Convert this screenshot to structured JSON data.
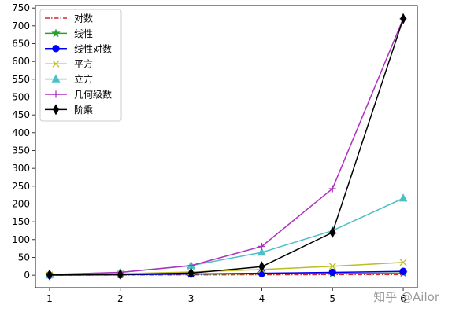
{
  "chart_data": {
    "type": "line",
    "title": "",
    "xlabel": "",
    "ylabel": "",
    "x": [
      1,
      2,
      3,
      4,
      5,
      6
    ],
    "xlim": [
      0.8,
      6.2
    ],
    "ylim": [
      -35,
      757
    ],
    "xticks": [
      1,
      2,
      3,
      4,
      5,
      6
    ],
    "yticks": [
      0,
      50,
      100,
      150,
      200,
      250,
      300,
      350,
      400,
      450,
      500,
      550,
      600,
      650,
      700,
      750
    ],
    "grid": false,
    "legend_position": "upper-left",
    "series": [
      {
        "name": "对数",
        "values": [
          0,
          0.69,
          1.1,
          1.39,
          1.61,
          1.79
        ],
        "color": "#d62728",
        "linestyle": "dashdot",
        "marker": "none"
      },
      {
        "name": "线性",
        "values": [
          1,
          2,
          3,
          4,
          5,
          6
        ],
        "color": "#2ca02c",
        "linestyle": "solid",
        "marker": "star"
      },
      {
        "name": "线性对数",
        "values": [
          0,
          1.39,
          3.3,
          5.55,
          8.05,
          10.75
        ],
        "color": "#0000ff",
        "linestyle": "solid",
        "marker": "circle"
      },
      {
        "name": "平方",
        "values": [
          1,
          4,
          9,
          16,
          25,
          36
        ],
        "color": "#bcbd22",
        "linestyle": "solid",
        "marker": "x"
      },
      {
        "name": "立方",
        "values": [
          1,
          8,
          27,
          64,
          125,
          216
        ],
        "color": "#4fbfc6",
        "linestyle": "solid",
        "marker": "triangle"
      },
      {
        "name": "几何级数",
        "values": [
          2,
          8,
          27,
          81,
          243,
          720
        ],
        "color": "#b030c0",
        "linestyle": "solid",
        "marker": "plus"
      },
      {
        "name": "阶乘",
        "values": [
          1,
          2,
          6,
          24,
          120,
          720
        ],
        "color": "#000000",
        "linestyle": "solid",
        "marker": "thin_diamond"
      }
    ]
  },
  "watermark": "知乎 @Ailor"
}
